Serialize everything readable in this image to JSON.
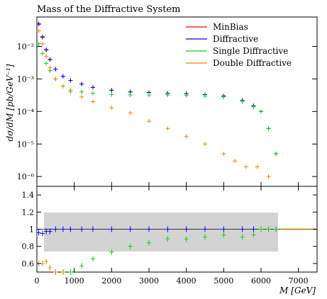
{
  "chart_data": {
    "type": "scatter",
    "title": "Mass of the Diffractive System",
    "xlabel": "M [GeV]",
    "ylabel": "dσ/dM [pb/GeV⁻¹]",
    "xlim": [
      0,
      7500
    ],
    "ylim": [
      5e-07,
      0.08
    ],
    "yscale": "log",
    "ratio_ylim": [
      0.5,
      1.5
    ],
    "legend_position": "top-right",
    "x_ticks": [
      0,
      1000,
      2000,
      3000,
      4000,
      5000,
      6000,
      7000
    ],
    "y_ticks": [
      {
        "v": 0.01,
        "label": "10⁻²"
      },
      {
        "v": 0.001,
        "label": "10⁻³"
      },
      {
        "v": 0.0001,
        "label": "10⁻⁴"
      },
      {
        "v": 1e-05,
        "label": "10⁻⁵"
      },
      {
        "v": 1e-06,
        "label": "10⁻⁶"
      }
    ],
    "ratio_ticks": [
      {
        "v": 0.6,
        "label": "0.6"
      },
      {
        "v": 0.8,
        "label": "0.8"
      },
      {
        "v": 1.0,
        "label": "1"
      },
      {
        "v": 1.2,
        "label": "1.2"
      },
      {
        "v": 1.4,
        "label": "1.4"
      }
    ],
    "series": [
      {
        "name": "MinBias",
        "color": "#ff0000",
        "x": [
          50,
          150,
          250,
          350,
          500,
          700,
          900,
          1200,
          1500,
          2000,
          2500,
          3000,
          3500,
          4000,
          4500,
          5000,
          5500,
          5800,
          6000,
          6200,
          6400
        ],
        "y": [
          0.05,
          0.02,
          0.008,
          0.004,
          0.002,
          0.0012,
          0.0009,
          0.0007,
          0.00055,
          0.00045,
          0.0004,
          0.00038,
          0.00036,
          0.00035,
          0.00033,
          0.0003,
          0.00022,
          0.00015,
          0.0001,
          3e-05,
          5e-06
        ]
      },
      {
        "name": "Diffractive",
        "color": "#0000ff",
        "x": [
          50,
          150,
          250,
          350,
          500,
          700,
          900,
          1200,
          1500,
          2000,
          2500,
          3000,
          3500,
          4000,
          4500,
          5000,
          5500,
          5800,
          6000,
          6200,
          6400
        ],
        "y": [
          0.048,
          0.019,
          0.0078,
          0.0039,
          0.002,
          0.0012,
          0.0009,
          0.0007,
          0.00055,
          0.00045,
          0.0004,
          0.00038,
          0.00036,
          0.00035,
          0.00033,
          0.0003,
          0.00022,
          0.00015,
          0.0001,
          3e-05,
          5e-06
        ]
      },
      {
        "name": "Single Diffractive",
        "color": "#00dd00",
        "x": [
          50,
          150,
          250,
          350,
          500,
          700,
          900,
          1200,
          1500,
          2000,
          2500,
          3000,
          3500,
          4000,
          4500,
          5000,
          5500,
          5800,
          6000,
          6200,
          6400
        ],
        "y": [
          0.012,
          0.006,
          0.003,
          0.0018,
          0.001,
          0.0006,
          0.00045,
          0.0004,
          0.00036,
          0.00033,
          0.00032,
          0.00032,
          0.00032,
          0.00031,
          0.0003,
          0.00028,
          0.0002,
          0.00014,
          0.0001,
          3e-05,
          5e-06
        ]
      },
      {
        "name": "Double Diffractive",
        "color": "#ee8800",
        "x": [
          50,
          150,
          250,
          350,
          500,
          700,
          900,
          1200,
          1500,
          2000,
          2500,
          3000,
          3500,
          4000,
          4500,
          5000,
          5300,
          5600,
          5900,
          6200
        ],
        "y": [
          0.03,
          0.012,
          0.005,
          0.0022,
          0.001,
          0.0006,
          0.0004,
          0.00028,
          0.0002,
          0.00013,
          9e-05,
          5e-05,
          3e-05,
          1.7e-05,
          1e-05,
          5e-06,
          3e-06,
          2e-06,
          2e-06,
          1e-06
        ]
      }
    ]
  }
}
